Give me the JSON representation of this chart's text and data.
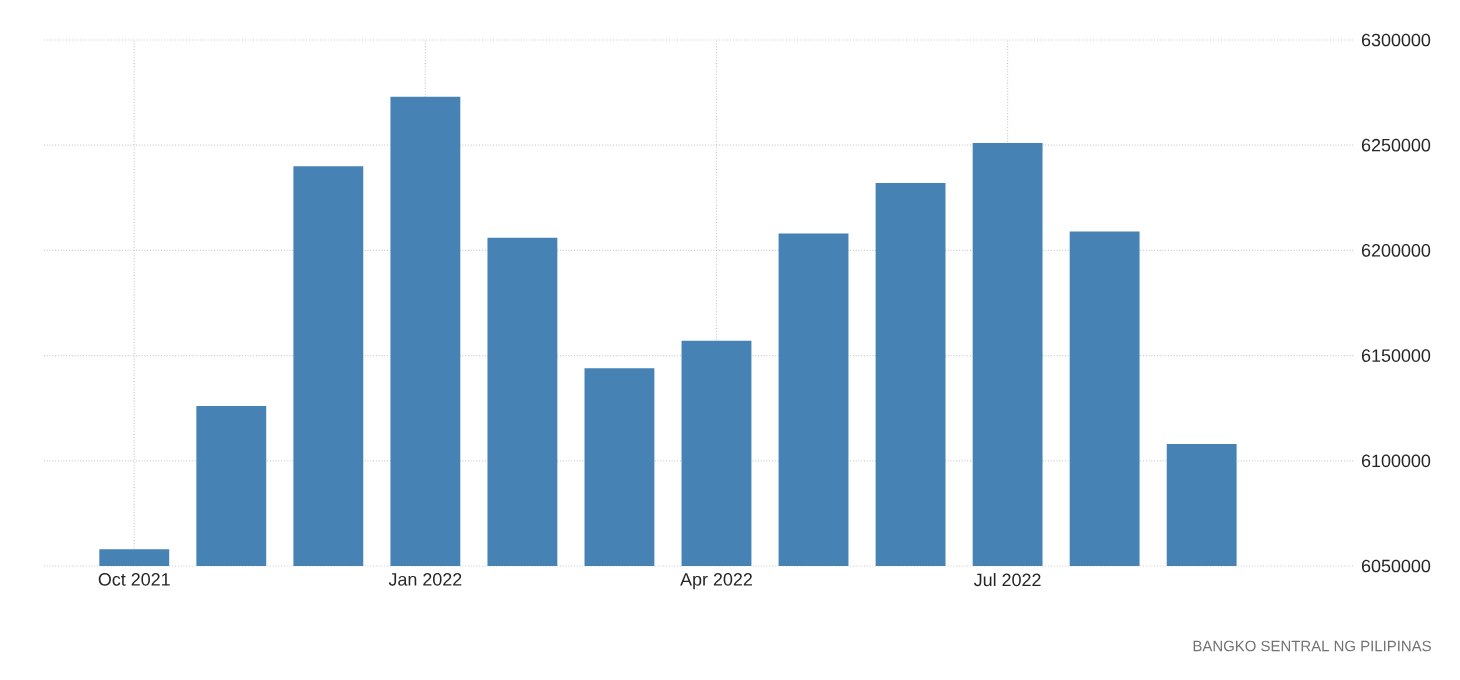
{
  "chart_data": {
    "type": "bar",
    "categories": [
      "Oct 2021",
      null,
      null,
      "Jan 2022",
      null,
      null,
      "Apr 2022",
      null,
      null,
      "Jul 2022",
      null,
      null
    ],
    "values": [
      6058000,
      6126000,
      6240000,
      6273000,
      6206000,
      6144000,
      6157000,
      6208000,
      6232000,
      6251000,
      6209000,
      6108000
    ],
    "color": "#4682b4",
    "ylim": [
      6050000,
      6300000
    ],
    "yticks": [
      6050000,
      6100000,
      6150000,
      6200000,
      6250000,
      6300000
    ],
    "grid": true,
    "annotations": [
      "BANGKO SENTRAL NG PILIPINAS"
    ]
  }
}
